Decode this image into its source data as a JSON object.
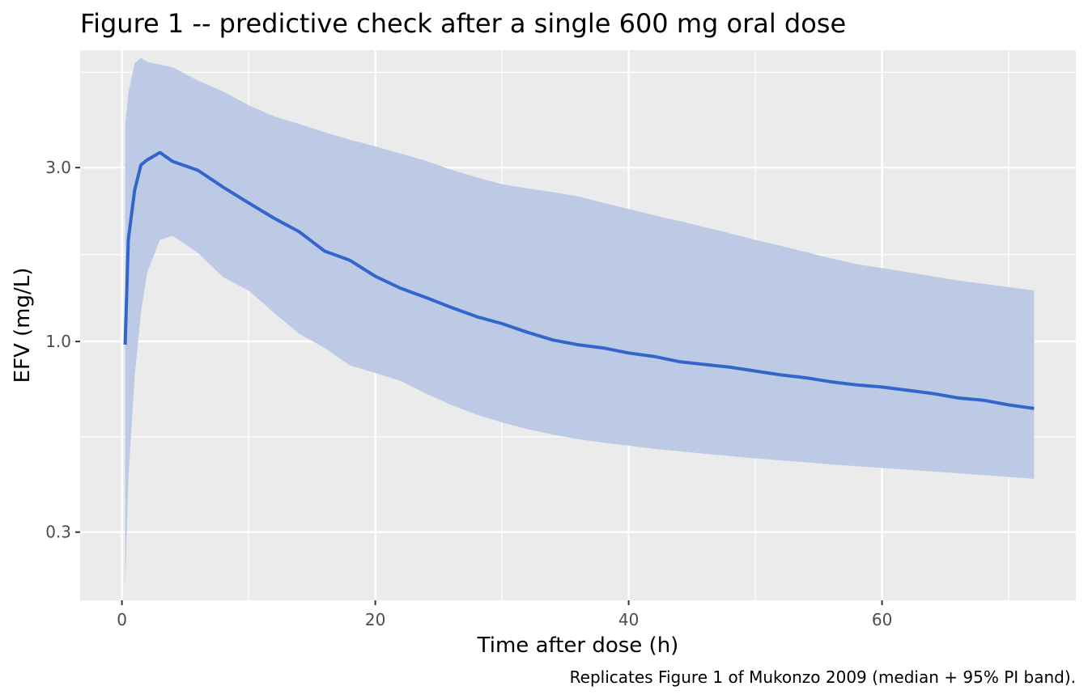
{
  "chart_data": {
    "type": "line",
    "title": "Figure 1 -- predictive check after a single 600 mg oral dose",
    "xlabel": "Time after dose (h)",
    "ylabel": "EFV (mg/L)",
    "caption": "Replicates Figure 1 of Mukonzo 2009 (median + 95% PI band).",
    "xlim": [
      -3.3,
      75.3
    ],
    "ylim": [
      0.195,
      6.3
    ],
    "y_scale": "log",
    "x_ticks": [
      0,
      20,
      40,
      60
    ],
    "x_tick_labels": [
      "0",
      "20",
      "40",
      "60"
    ],
    "y_ticks": [
      0.3,
      1.0,
      3.0
    ],
    "y_tick_labels": [
      "0.3",
      "1.0",
      "3.0"
    ],
    "grid": true,
    "colors": {
      "panel_bg": "#ebebeb",
      "grid": "#ffffff",
      "median": "#3366cc",
      "band": "#bccae6"
    },
    "series": [
      {
        "role": "median",
        "x": [
          0.25,
          0.5,
          1,
          1.5,
          2,
          3,
          4,
          6,
          8,
          10,
          12,
          14,
          16,
          18,
          20,
          22,
          24,
          26,
          28,
          30,
          32,
          34,
          36,
          38,
          40,
          42,
          44,
          46,
          48,
          50,
          52,
          54,
          56,
          58,
          60,
          62,
          64,
          66,
          68,
          70,
          72
        ],
        "y": [
          0.98,
          1.9,
          2.6,
          3.05,
          3.15,
          3.3,
          3.12,
          2.95,
          2.65,
          2.4,
          2.18,
          2.0,
          1.77,
          1.67,
          1.51,
          1.4,
          1.32,
          1.24,
          1.17,
          1.12,
          1.06,
          1.01,
          0.98,
          0.96,
          0.93,
          0.91,
          0.88,
          0.865,
          0.85,
          0.83,
          0.81,
          0.795,
          0.775,
          0.76,
          0.75,
          0.735,
          0.72,
          0.7,
          0.69,
          0.67,
          0.655
        ]
      },
      {
        "role": "95% PI band",
        "x": [
          0.25,
          0.5,
          1,
          1.5,
          2,
          3,
          4,
          6,
          8,
          10,
          12,
          14,
          16,
          18,
          20,
          22,
          24,
          26,
          28,
          30,
          32,
          34,
          36,
          38,
          40,
          42,
          44,
          46,
          48,
          50,
          52,
          54,
          56,
          58,
          60,
          62,
          64,
          66,
          68,
          70,
          72
        ],
        "lower": [
          0.21,
          0.42,
          0.8,
          1.2,
          1.55,
          1.9,
          1.95,
          1.75,
          1.5,
          1.38,
          1.2,
          1.05,
          0.96,
          0.86,
          0.82,
          0.78,
          0.72,
          0.67,
          0.63,
          0.6,
          0.575,
          0.555,
          0.54,
          0.528,
          0.518,
          0.508,
          0.5,
          0.492,
          0.485,
          0.478,
          0.472,
          0.466,
          0.46,
          0.455,
          0.45,
          0.445,
          0.44,
          0.435,
          0.43,
          0.425,
          0.42
        ],
        "upper": [
          3.9,
          4.8,
          5.8,
          6.0,
          5.85,
          5.75,
          5.65,
          5.2,
          4.85,
          4.45,
          4.15,
          3.95,
          3.75,
          3.58,
          3.43,
          3.28,
          3.13,
          2.96,
          2.82,
          2.7,
          2.63,
          2.57,
          2.5,
          2.4,
          2.31,
          2.22,
          2.14,
          2.06,
          1.98,
          1.9,
          1.83,
          1.76,
          1.69,
          1.63,
          1.59,
          1.55,
          1.51,
          1.47,
          1.44,
          1.41,
          1.38
        ]
      }
    ]
  }
}
